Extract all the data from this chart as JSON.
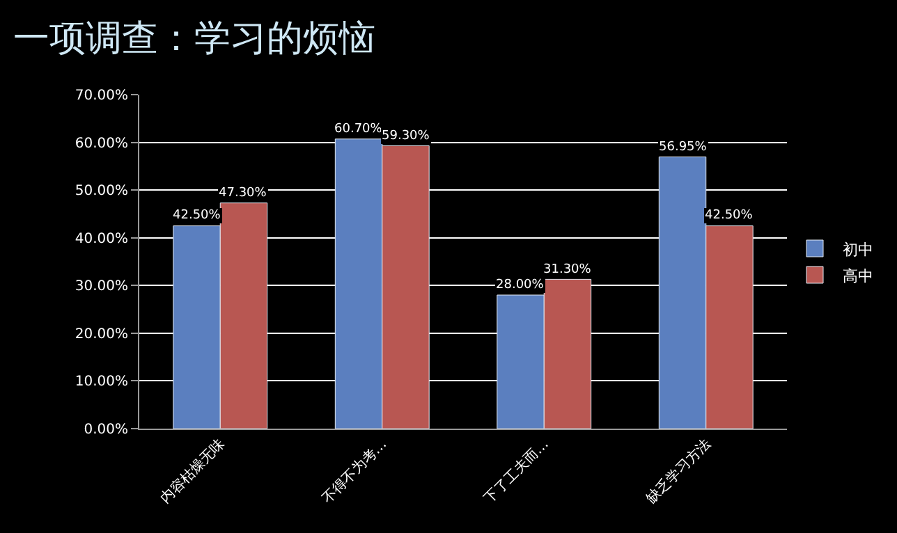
{
  "chart_data": {
    "type": "bar",
    "title": "一项调查：学习的烦恼",
    "categories": [
      "内容枯燥无味",
      "不得不为考…",
      "下了工夫而…",
      "缺乏学习方法"
    ],
    "series": [
      {
        "name": "初中",
        "color": "#5b7fbf",
        "values": [
          42.5,
          60.7,
          28.0,
          56.95
        ],
        "value_labels": [
          "42.50%",
          "60.70%",
          "28.00%",
          "56.95%"
        ]
      },
      {
        "name": "高中",
        "color": "#b85752",
        "values": [
          47.3,
          59.3,
          31.3,
          42.5
        ],
        "value_labels": [
          "47.30%",
          "59.30%",
          "31.30%",
          "42.50%"
        ]
      }
    ],
    "ylim": [
      0,
      70
    ],
    "yticks": [
      {
        "value": 0,
        "label": "0.00%"
      },
      {
        "value": 10,
        "label": "10.00%"
      },
      {
        "value": 20,
        "label": "20.00%"
      },
      {
        "value": 30,
        "label": "30.00%"
      },
      {
        "value": 40,
        "label": "40.00%"
      },
      {
        "value": 50,
        "label": "50.00%"
      },
      {
        "value": 60,
        "label": "60.00%"
      },
      {
        "value": 70,
        "label": "70.00%"
      }
    ],
    "grid": "y",
    "legend": "right"
  }
}
